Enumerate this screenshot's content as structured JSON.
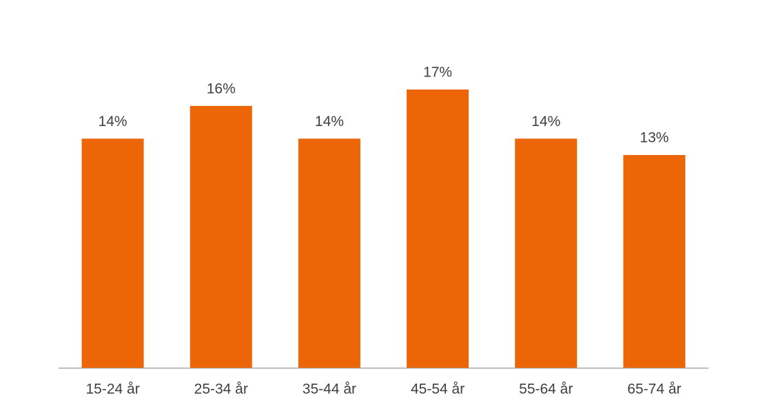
{
  "chart_data": {
    "type": "bar",
    "categories": [
      "15-24 år",
      "25-34 år",
      "35-44 år",
      "45-54 år",
      "55-64 år",
      "65-74 år"
    ],
    "values": [
      14,
      16,
      14,
      17,
      14,
      13
    ],
    "value_labels": [
      "14%",
      "16%",
      "14%",
      "17%",
      "14%",
      "13%"
    ],
    "color": "#ec6608"
  }
}
